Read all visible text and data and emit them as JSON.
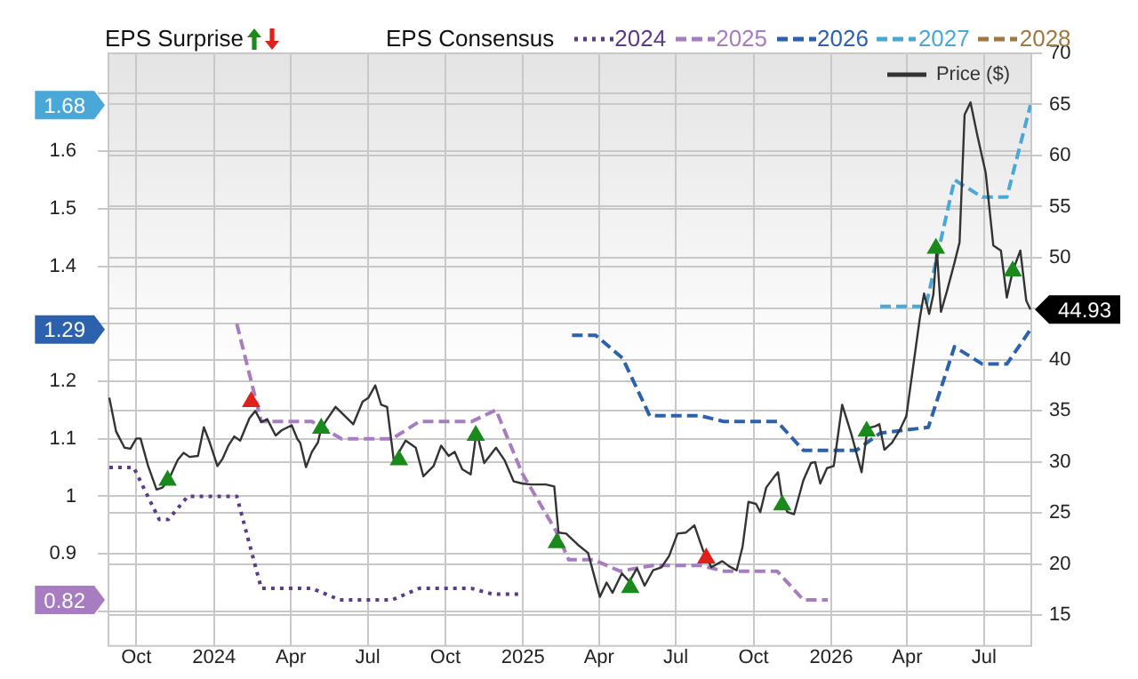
{
  "chart_data": {
    "type": "line",
    "legend_title": "EPS Consensus",
    "annotations": [
      "EPS Surprise",
      "1.68",
      "1.29",
      "0.82"
    ],
    "legend": "top",
    "grid": true,
    "xlim": [
      "2023-08-29",
      "2026-08-26"
    ],
    "xticks": [
      {
        "value": "2023-10-01",
        "label": "Oct"
      },
      {
        "value": "2024-01-01",
        "label": "2024"
      },
      {
        "value": "2024-04-01",
        "label": "Apr"
      },
      {
        "value": "2024-07-01",
        "label": "Jul"
      },
      {
        "value": "2024-10-01",
        "label": "Oct"
      },
      {
        "value": "2025-01-01",
        "label": "2025"
      },
      {
        "value": "2025-04-01",
        "label": "Apr"
      },
      {
        "value": "2025-07-01",
        "label": "Jul"
      },
      {
        "value": "2025-10-01",
        "label": "Oct"
      },
      {
        "value": "2026-01-01",
        "label": "2026"
      },
      {
        "value": "2026-04-01",
        "label": "Apr"
      },
      {
        "value": "2026-07-01",
        "label": "Jul"
      }
    ],
    "ylim": [
      0.74,
      1.77
    ],
    "yticks": [
      {
        "value": 0.8,
        "label": null
      },
      0.9,
      1,
      1.1,
      1.2,
      {
        "value": 1.3,
        "label": null
      },
      1.4,
      1.5,
      1.6,
      {
        "value": 1.7,
        "label": null
      }
    ],
    "y2lim": [
      12,
      70
    ],
    "y2ticks": [
      15,
      20,
      25,
      30,
      35,
      40,
      {
        "value": 45,
        "label": null
      },
      50,
      55,
      60,
      65,
      70
    ],
    "series": [
      {
        "name": "2024",
        "color": "#5b3a8c",
        "line_style": "dotted",
        "x": [
          "2023-08-30",
          "2023-09-28",
          "2023-10-28",
          "2023-11-08",
          "2023-12-01",
          "2024-01-28",
          "2024-02-26",
          "2024-04-26",
          "2024-05-29",
          "2024-07-30",
          "2024-08-31",
          "2024-11-01",
          "2024-11-26",
          "2024-12-30"
        ],
        "values": [
          1.05,
          1.05,
          0.96,
          0.96,
          1.0,
          1.0,
          0.84,
          0.84,
          0.82,
          0.82,
          0.84,
          0.84,
          0.83,
          0.83
        ]
      },
      {
        "name": "2025",
        "color": "#a87cc0",
        "line_style": "dashed",
        "x": [
          "2024-01-28",
          "2024-02-26",
          "2024-04-26",
          "2024-05-31",
          "2024-07-30",
          "2024-08-31",
          "2024-11-01",
          "2024-11-30",
          "2024-12-31",
          "2025-02-09",
          "2025-02-24",
          "2025-03-25",
          "2025-04-26",
          "2025-06-04",
          "2025-07-30",
          "2025-08-27",
          "2025-10-29",
          "2025-11-29",
          "2025-12-28"
        ],
        "values": [
          1.3,
          1.13,
          1.13,
          1.1,
          1.1,
          1.13,
          1.13,
          1.15,
          1.04,
          0.94,
          0.89,
          0.89,
          0.87,
          0.88,
          0.88,
          0.87,
          0.87,
          0.82,
          0.82
        ]
      },
      {
        "name": "2026",
        "color": "#2c62ad",
        "line_style": "dashed",
        "x": [
          "2025-02-28",
          "2025-03-28",
          "2025-04-29",
          "2025-05-31",
          "2025-07-30",
          "2025-08-27",
          "2025-10-29",
          "2025-11-29",
          "2026-01-31",
          "2026-02-28",
          "2026-04-26",
          "2026-05-27",
          "2026-06-29",
          "2026-07-28",
          "2026-08-25"
        ],
        "values": [
          1.28,
          1.28,
          1.24,
          1.14,
          1.14,
          1.13,
          1.13,
          1.08,
          1.08,
          1.11,
          1.12,
          1.26,
          1.23,
          1.23,
          1.29
        ]
      },
      {
        "name": "2027",
        "color": "#4aa8d8",
        "line_style": "dashed",
        "x": [
          "2026-02-28",
          "2026-04-23",
          "2026-05-27",
          "2026-06-29",
          "2026-07-28",
          "2026-08-25"
        ],
        "values": [
          1.33,
          1.33,
          1.55,
          1.52,
          1.52,
          1.68
        ]
      },
      {
        "name": "2028",
        "color": "#a07840",
        "line_style": "dashed"
      },
      {
        "name": "Price ($)",
        "color": "#333333",
        "axis": "y2",
        "line_style": "solid",
        "x": [
          "2023-08-30",
          "2023-09-07",
          "2023-09-17",
          "2023-09-24",
          "2023-10-01",
          "2023-10-06",
          "2023-10-15",
          "2023-10-25",
          "2023-11-01",
          "2023-11-08",
          "2023-11-19",
          "2023-11-26",
          "2023-12-03",
          "2023-12-13",
          "2023-12-20",
          "2023-12-27",
          "2024-01-05",
          "2024-01-11",
          "2024-01-18",
          "2024-01-25",
          "2024-02-01",
          "2024-02-12",
          "2024-02-19",
          "2024-02-26",
          "2024-03-04",
          "2024-03-14",
          "2024-03-21",
          "2024-04-02",
          "2024-04-09",
          "2024-04-12",
          "2024-04-19",
          "2024-04-26",
          "2024-05-03",
          "2024-05-07",
          "2024-05-14",
          "2024-05-24",
          "2024-06-04",
          "2024-06-14",
          "2024-06-25",
          "2024-07-02",
          "2024-07-10",
          "2024-07-17",
          "2024-07-24",
          "2024-08-01",
          "2024-08-15",
          "2024-08-27",
          "2024-09-05",
          "2024-09-17",
          "2024-09-26",
          "2024-10-05",
          "2024-10-12",
          "2024-10-21",
          "2024-10-31",
          "2024-11-07",
          "2024-11-16",
          "2024-11-30",
          "2024-12-10",
          "2024-12-21",
          "2024-12-31",
          "2025-01-10",
          "2025-01-17",
          "2025-01-28",
          "2025-02-07",
          "2025-02-12",
          "2025-02-21",
          "2025-03-07",
          "2025-03-19",
          "2025-04-02",
          "2025-04-10",
          "2025-04-17",
          "2025-04-28",
          "2025-05-07",
          "2025-05-16",
          "2025-05-25",
          "2025-06-04",
          "2025-06-14",
          "2025-06-23",
          "2025-07-03",
          "2025-07-13",
          "2025-07-23",
          "2025-08-02",
          "2025-08-12",
          "2025-08-25",
          "2025-09-02",
          "2025-09-11",
          "2025-09-18",
          "2025-09-25",
          "2025-10-04",
          "2025-10-09",
          "2025-10-16",
          "2025-10-25",
          "2025-10-30",
          "2025-11-03",
          "2025-11-10",
          "2025-11-18",
          "2025-11-29",
          "2025-12-08",
          "2025-12-13",
          "2025-12-19",
          "2025-12-27",
          "2026-01-04",
          "2026-01-14",
          "2026-01-25",
          "2026-02-06",
          "2026-02-13",
          "2026-02-22",
          "2026-02-27",
          "2026-03-05",
          "2026-03-14",
          "2026-03-23",
          "2026-03-31",
          "2026-04-06",
          "2026-04-16",
          "2026-04-21",
          "2026-04-27",
          "2026-05-02",
          "2026-05-06",
          "2026-05-11",
          "2026-05-18",
          "2026-05-27",
          "2026-06-02",
          "2026-06-08",
          "2026-06-15",
          "2026-06-23",
          "2026-07-03",
          "2026-07-12",
          "2026-07-21",
          "2026-07-28",
          "2026-08-04",
          "2026-08-13",
          "2026-08-20",
          "2026-08-25"
        ],
        "values": [
          36.3,
          33.0,
          31.4,
          31.3,
          32.3,
          32.3,
          29.6,
          27.3,
          27.5,
          28.2,
          30.2,
          30.9,
          30.5,
          30.6,
          33.4,
          31.9,
          29.6,
          30.3,
          31.6,
          32.5,
          32.1,
          34.3,
          35.0,
          33.9,
          34.2,
          32.6,
          33.1,
          33.6,
          32.2,
          31.9,
          29.5,
          31.0,
          31.9,
          33.3,
          34.2,
          35.4,
          34.5,
          33.7,
          35.9,
          36.3,
          37.5,
          35.6,
          35.4,
          30.1,
          32.1,
          31.4,
          28.6,
          29.6,
          31.6,
          30.6,
          31.0,
          29.3,
          28.8,
          33.0,
          29.9,
          31.4,
          30.2,
          28.1,
          27.9,
          27.8,
          27.8,
          27.8,
          27.6,
          23.1,
          23.0,
          21.9,
          21.1,
          16.8,
          18.2,
          17.2,
          19.1,
          18.3,
          19.6,
          17.9,
          19.4,
          19.7,
          20.8,
          23.0,
          23.1,
          23.8,
          21.4,
          19.7,
          20.3,
          19.8,
          19.4,
          21.7,
          26.1,
          25.9,
          25.1,
          27.5,
          28.5,
          29.0,
          26.8,
          25.1,
          24.9,
          28.2,
          29.9,
          30.0,
          27.9,
          29.4,
          29.6,
          35.6,
          32.7,
          29.0,
          33.3,
          33.5,
          33.7,
          31.2,
          31.9,
          33.1,
          34.5,
          38.1,
          44.1,
          46.5,
          44.5,
          46.4,
          50.9,
          44.7,
          46.7,
          49.5,
          51.5,
          64.0,
          65.2,
          62.0,
          58.3,
          51.2,
          50.7,
          46.1,
          48.7,
          50.7,
          45.8,
          44.93
        ],
        "value_labels": [
          null,
          null,
          null,
          null,
          null,
          null,
          null,
          null,
          null,
          null,
          null,
          null,
          null,
          null,
          null,
          null,
          null,
          null,
          null,
          null,
          null,
          null,
          null,
          null,
          null,
          null,
          null,
          null,
          null,
          null,
          null,
          null,
          null,
          null,
          null,
          null,
          null,
          null,
          null,
          null,
          null,
          null,
          null,
          null,
          null,
          null,
          null,
          null,
          null,
          null,
          null,
          null,
          null,
          null,
          null,
          null,
          null,
          null,
          null,
          null,
          null,
          null,
          null,
          null,
          null,
          null,
          null,
          null,
          null,
          null,
          null,
          null,
          null,
          null,
          null,
          null,
          null,
          null,
          null,
          null,
          null,
          null,
          null,
          null,
          null,
          null,
          null,
          null,
          null,
          null,
          null,
          null,
          null,
          null,
          null,
          null,
          null,
          null,
          null,
          null,
          null,
          null,
          null,
          null,
          null,
          null,
          null,
          null,
          null,
          null,
          null,
          null,
          null,
          null,
          null,
          null,
          null,
          null,
          null,
          null,
          null,
          null,
          null,
          null,
          null,
          null,
          null,
          null,
          null,
          null,
          null,
          "44.93"
        ]
      },
      {
        "type": "scatter",
        "color": "#1a8a1a",
        "axis": "y2",
        "marker": "triangle",
        "x": [
          "2023-11-07",
          "2024-05-07",
          "2024-08-07",
          "2024-11-06",
          "2025-02-10",
          "2025-05-08",
          "2025-11-04",
          "2026-02-12",
          "2026-05-05",
          "2026-08-04"
        ],
        "values": [
          28.2,
          33.3,
          30.2,
          32.6,
          22.1,
          17.7,
          25.8,
          33.0,
          50.9,
          48.7
        ]
      },
      {
        "type": "scatter",
        "color": "#e0201a",
        "axis": "y2",
        "marker": "triangle",
        "x": [
          "2024-02-14",
          "2025-08-06"
        ],
        "values": [
          35.9,
          20.6
        ]
      }
    ]
  }
}
